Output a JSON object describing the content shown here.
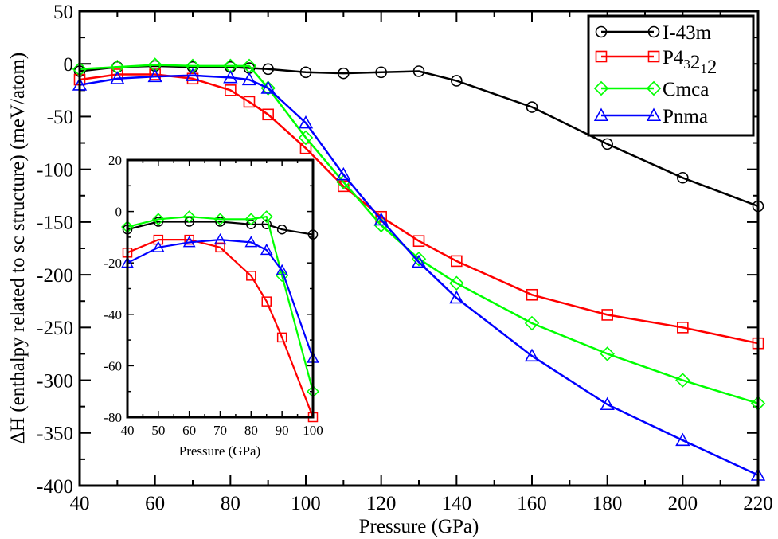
{
  "chart_data": [
    {
      "type": "line",
      "xlabel": "Pressure (GPa)",
      "ylabel": "ΔH (enthalpy related to sc structure) (meV/atom)",
      "xlim": [
        40,
        220
      ],
      "ylim": [
        -400,
        50
      ],
      "xticks": [
        40,
        60,
        80,
        100,
        120,
        140,
        160,
        180,
        200,
        220
      ],
      "yticks": [
        50,
        0,
        -50,
        -100,
        -150,
        -200,
        -250,
        -300,
        -350,
        -400
      ],
      "grid": false,
      "legend_position": "top-right",
      "series": [
        {
          "name": "I-43m",
          "legend": {
            "base": "I-43m"
          },
          "color": "#000000",
          "marker": "circle",
          "x": [
            40,
            50,
            60,
            70,
            80,
            85,
            90,
            100,
            110,
            120,
            130,
            140,
            160,
            180,
            200,
            220
          ],
          "y": [
            -7,
            -3,
            -2,
            -3,
            -3,
            -4,
            -5,
            -8,
            -9,
            -8,
            -7,
            -16,
            -41,
            -76,
            -108,
            -135
          ]
        },
        {
          "name": "P4_3 2_1 2",
          "legend": {
            "base": "P4",
            "sub1": "3",
            "mid": "2",
            "sub2": "1",
            "end": "2"
          },
          "color": "#ff0000",
          "marker": "square",
          "x": [
            40,
            50,
            60,
            70,
            80,
            85,
            90,
            100,
            110,
            120,
            130,
            140,
            160,
            180,
            200,
            220
          ],
          "y": [
            -15,
            -10,
            -10,
            -14,
            -25,
            -36,
            -48,
            -80,
            -116,
            -145,
            -168,
            -187,
            -219,
            -238,
            -250,
            -265
          ]
        },
        {
          "name": "Cmca",
          "legend": {
            "base": "Cmca"
          },
          "color": "#00ff00",
          "marker": "diamond",
          "x": [
            40,
            50,
            60,
            70,
            80,
            85,
            90,
            100,
            110,
            120,
            130,
            140,
            160,
            180,
            200,
            220
          ],
          "y": [
            -5,
            -3,
            -1,
            -2,
            -2,
            -2,
            -23,
            -70,
            -112,
            -153,
            -185,
            -208,
            -246,
            -275,
            -300,
            -322
          ]
        },
        {
          "name": "Pnma",
          "legend": {
            "base": "Pnma"
          },
          "color": "#0000ff",
          "marker": "triangle",
          "x": [
            40,
            50,
            60,
            70,
            80,
            85,
            90,
            100,
            110,
            120,
            130,
            140,
            160,
            180,
            200,
            220
          ],
          "y": [
            -20,
            -14,
            -12,
            -11,
            -13,
            -15,
            -23,
            -56,
            -105,
            -148,
            -188,
            -222,
            -277,
            -323,
            -357,
            -390
          ]
        }
      ]
    },
    {
      "type": "line",
      "xlabel": "Pressure (GPa)",
      "ylabel": "",
      "xlim": [
        40,
        100
      ],
      "ylim": [
        -80,
        20
      ],
      "xticks": [
        40,
        50,
        60,
        70,
        80,
        90,
        100
      ],
      "yticks": [
        20,
        0,
        -20,
        -40,
        -60,
        -80
      ],
      "grid": false,
      "series": [
        {
          "name": "I-43m",
          "color": "#000000",
          "marker": "circle",
          "x": [
            40,
            50,
            60,
            70,
            80,
            85,
            90,
            100
          ],
          "y": [
            -7,
            -4,
            -4,
            -4,
            -5,
            -5,
            -7,
            -9
          ]
        },
        {
          "name": "P4_3 2_1 2",
          "color": "#ff0000",
          "marker": "square",
          "x": [
            40,
            50,
            60,
            70,
            80,
            85,
            90,
            100
          ],
          "y": [
            -16,
            -11,
            -11,
            -14,
            -25,
            -35,
            -49,
            -80
          ]
        },
        {
          "name": "Cmca",
          "color": "#00ff00",
          "marker": "diamond",
          "x": [
            40,
            50,
            60,
            70,
            80,
            85,
            90,
            100
          ],
          "y": [
            -6,
            -3,
            -2,
            -3,
            -3,
            -2,
            -25,
            -70
          ]
        },
        {
          "name": "Pnma",
          "color": "#0000ff",
          "marker": "triangle",
          "x": [
            40,
            50,
            60,
            70,
            80,
            85,
            90,
            100
          ],
          "y": [
            -20,
            -14,
            -12,
            -11,
            -12,
            -15,
            -23,
            -57
          ]
        }
      ]
    }
  ]
}
